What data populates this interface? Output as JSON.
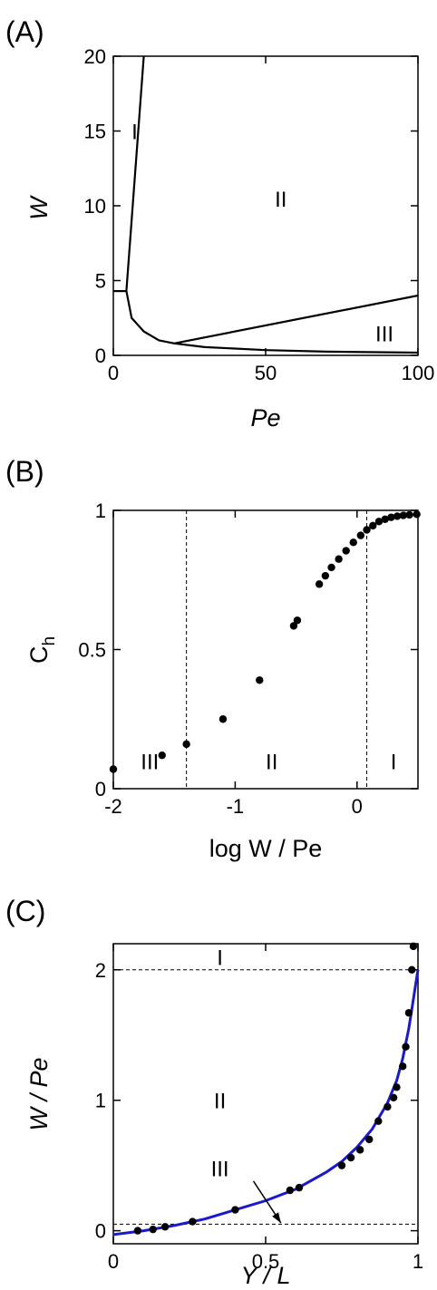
{
  "panels": {
    "A": "(A)",
    "B": "(B)",
    "C": "(C)"
  },
  "chart_data": [
    {
      "type": "line",
      "panel": "A",
      "xlabel": "Pe",
      "ylabel": "W",
      "xlim": [
        0,
        100
      ],
      "ylim": [
        0,
        20
      ],
      "xticks": [
        "0",
        "50",
        "100"
      ],
      "yticks": [
        "0",
        "5",
        "10",
        "15",
        "20"
      ],
      "series": [
        {
          "values": [
            [
              4.3,
              4.3
            ],
            [
              10,
              20
            ]
          ]
        },
        {
          "values": [
            [
              0,
              4.3
            ],
            [
              4.3,
              4.3
            ]
          ]
        },
        {
          "values": [
            [
              4.3,
              4.3
            ],
            [
              6,
              2.5
            ],
            [
              10,
              1.6
            ],
            [
              15,
              1.0
            ],
            [
              20,
              0.8
            ],
            [
              30,
              0.55
            ],
            [
              50,
              0.35
            ],
            [
              70,
              0.25
            ],
            [
              100,
              0.18
            ]
          ]
        },
        {
          "values": [
            [
              20,
              0.8
            ],
            [
              100,
              4.0
            ]
          ]
        }
      ],
      "annotations": [
        {
          "text": "I",
          "x": 7,
          "y": 15
        },
        {
          "text": "II",
          "x": 55,
          "y": 10.5
        },
        {
          "text": "III",
          "x": 89,
          "y": 1.5
        }
      ]
    },
    {
      "type": "scatter",
      "panel": "B",
      "xlabel": "log W / Pe",
      "ylabel": "C",
      "ylabel_sub": "h",
      "xlim": [
        -2,
        0.5
      ],
      "ylim": [
        0,
        1
      ],
      "xticks": [
        "-2",
        "-1",
        "0"
      ],
      "yticks": [
        "0",
        "0.5",
        "1"
      ],
      "points": [
        [
          -2.0,
          0.07
        ],
        [
          -1.6,
          0.12
        ],
        [
          -1.4,
          0.16
        ],
        [
          -1.1,
          0.25
        ],
        [
          -0.8,
          0.39
        ],
        [
          -0.52,
          0.585
        ],
        [
          -0.49,
          0.605
        ],
        [
          -0.31,
          0.735
        ],
        [
          -0.26,
          0.765
        ],
        [
          -0.21,
          0.795
        ],
        [
          -0.15,
          0.825
        ],
        [
          -0.09,
          0.855
        ],
        [
          -0.03,
          0.885
        ],
        [
          0.03,
          0.91
        ],
        [
          0.08,
          0.93
        ],
        [
          0.13,
          0.945
        ],
        [
          0.18,
          0.96
        ],
        [
          0.23,
          0.968
        ],
        [
          0.28,
          0.975
        ],
        [
          0.33,
          0.979
        ],
        [
          0.38,
          0.982
        ],
        [
          0.43,
          0.984
        ],
        [
          0.49,
          0.986
        ]
      ],
      "vlines": [
        -1.4,
        0.08
      ],
      "annotations": [
        {
          "text": "III",
          "x": -1.7,
          "y": 0.1
        },
        {
          "text": "II",
          "x": -0.7,
          "y": 0.1
        },
        {
          "text": "I",
          "x": 0.3,
          "y": 0.1
        }
      ]
    },
    {
      "type": "scatter",
      "panel": "C",
      "xlabel": "Y / L",
      "ylabel": "W / Pe",
      "xlim": [
        0,
        1
      ],
      "ylim": [
        -0.1,
        2.2
      ],
      "xticks": [
        "0",
        "0.5",
        "1"
      ],
      "yticks": [
        "0",
        "1",
        "2"
      ],
      "hlines": [
        2.0,
        0.05
      ],
      "curve": [
        [
          0.0,
          -0.03
        ],
        [
          0.1,
          0.0
        ],
        [
          0.2,
          0.04
        ],
        [
          0.3,
          0.09
        ],
        [
          0.4,
          0.16
        ],
        [
          0.5,
          0.23
        ],
        [
          0.6,
          0.32
        ],
        [
          0.7,
          0.45
        ],
        [
          0.75,
          0.53
        ],
        [
          0.8,
          0.64
        ],
        [
          0.85,
          0.78
        ],
        [
          0.9,
          0.98
        ],
        [
          0.93,
          1.15
        ],
        [
          0.95,
          1.32
        ],
        [
          0.97,
          1.55
        ],
        [
          0.98,
          1.7
        ],
        [
          0.99,
          1.85
        ],
        [
          1.0,
          2.0
        ]
      ],
      "points": [
        [
          0.08,
          0.0
        ],
        [
          0.13,
          0.01
        ],
        [
          0.17,
          0.03
        ],
        [
          0.26,
          0.07
        ],
        [
          0.4,
          0.16
        ],
        [
          0.58,
          0.31
        ],
        [
          0.61,
          0.33
        ],
        [
          0.75,
          0.5
        ],
        [
          0.78,
          0.56
        ],
        [
          0.81,
          0.62
        ],
        [
          0.84,
          0.7
        ],
        [
          0.87,
          0.84
        ],
        [
          0.9,
          0.95
        ],
        [
          0.92,
          1.02
        ],
        [
          0.93,
          1.1
        ],
        [
          0.95,
          1.26
        ],
        [
          0.96,
          1.41
        ],
        [
          0.97,
          1.67
        ],
        [
          0.98,
          2.0
        ],
        [
          0.985,
          2.18
        ]
      ],
      "annotations": [
        {
          "text": "I",
          "x": 0.35,
          "y": 2.1
        },
        {
          "text": "II",
          "x": 0.35,
          "y": 1.0
        },
        {
          "text": "III",
          "x": 0.35,
          "y": 0.48
        }
      ],
      "arrow": {
        "from": [
          0.46,
          0.38
        ],
        "to": [
          0.55,
          0.06
        ]
      }
    }
  ]
}
